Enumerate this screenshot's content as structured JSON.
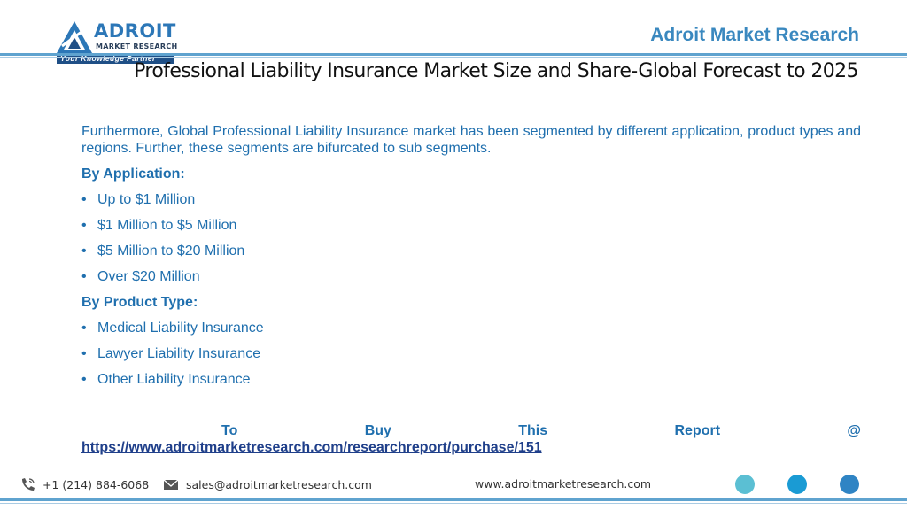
{
  "logo": {
    "word": "ADROIT",
    "subtitle": "MARKET RESEARCH",
    "tagline": "Your Knowledge Partner"
  },
  "brand": "Adroit Market Research",
  "title": "Professional Liability Insurance Market Size and Share-Global Forecast to 2025",
  "intro": "Furthermore, Global Professional Liability Insurance market has been segmented by different application, product types and regions. Further, these segments are bifurcated to sub segments.",
  "sections": [
    {
      "heading": "By Application:",
      "items": [
        "Up to $1 Million",
        "$1 Million to $5 Million",
        "$5 Million to $20 Million",
        "Over $20 Million"
      ]
    },
    {
      "heading": "By Product Type:",
      "items": [
        "Medical Liability Insurance",
        "Lawyer Liability Insurance",
        "Other Liability Insurance"
      ]
    }
  ],
  "buy": {
    "words": [
      "To",
      "Buy",
      "This",
      "Report",
      "@"
    ],
    "link": "https://www.adroitmarketresearch.com/researchreport/purchase/151"
  },
  "footer": {
    "phone": "+1 (214) 884-6068",
    "email": "sales@adroitmarketresearch.com",
    "website": "www.adroitmarketresearch.com",
    "dot_colors": [
      "#5bbfd3",
      "#1a9bd4",
      "#2f84c4"
    ]
  },
  "colors": {
    "accent": "#1f6fae",
    "rule": "#5fa3cf"
  }
}
